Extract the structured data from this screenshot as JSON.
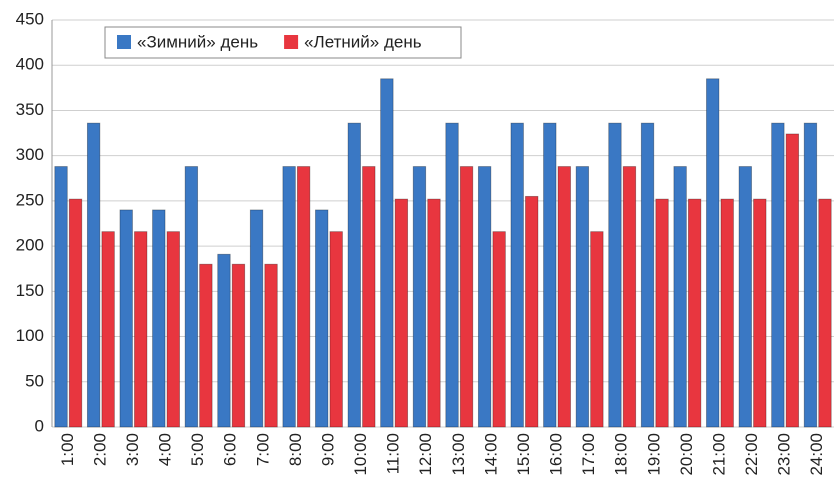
{
  "chart_data": {
    "type": "bar",
    "categories": [
      "1:00",
      "2:00",
      "3:00",
      "4:00",
      "5:00",
      "6:00",
      "7:00",
      "8:00",
      "9:00",
      "10:00",
      "11:00",
      "12:00",
      "13:00",
      "14:00",
      "15:00",
      "16:00",
      "17:00",
      "18:00",
      "19:00",
      "20:00",
      "21:00",
      "22:00",
      "23:00",
      "24:00"
    ],
    "series": [
      {
        "name": "«Зимний» день",
        "color": "#3a78c4",
        "values": [
          288,
          336,
          240,
          240,
          288,
          191,
          240,
          288,
          240,
          336,
          385,
          288,
          336,
          288,
          336,
          336,
          288,
          336,
          336,
          288,
          385,
          288,
          336,
          336
        ]
      },
      {
        "name": "«Летний» день",
        "color": "#e8363f",
        "values": [
          252,
          216,
          216,
          216,
          180,
          180,
          180,
          288,
          216,
          288,
          252,
          252,
          288,
          216,
          255,
          288,
          216,
          288,
          252,
          252,
          252,
          252,
          324,
          252
        ]
      }
    ],
    "ylim": [
      0,
      450
    ],
    "yticks": [
      0,
      50,
      100,
      150,
      200,
      250,
      300,
      350,
      400,
      450
    ],
    "grid": true,
    "legend": "top-left"
  }
}
